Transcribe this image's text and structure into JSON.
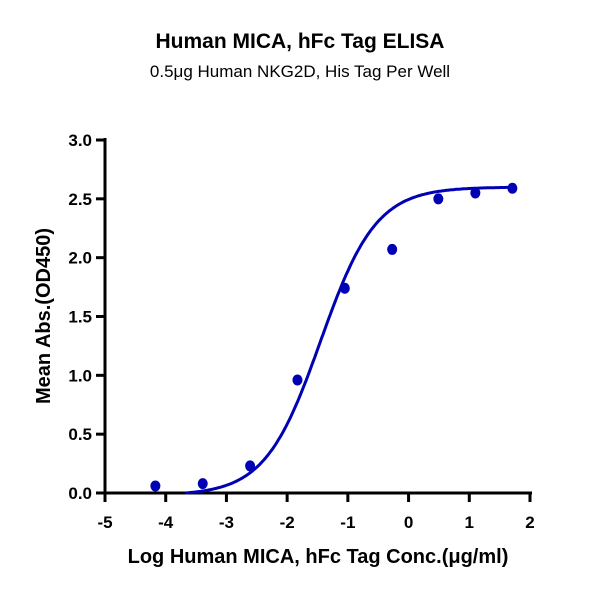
{
  "chart_data": {
    "type": "scatter",
    "title": "Human MICA, hFc Tag ELISA",
    "subtitle": "0.5μg Human NKG2D, His Tag Per Well",
    "xlabel": "Log Human MICA, hFc Tag Conc.(μg/ml)",
    "ylabel": "Mean Abs.(OD450)",
    "xlim": [
      -5,
      2
    ],
    "ylim": [
      0,
      3
    ],
    "xticks": [
      "-5",
      "-4",
      "-3",
      "-2",
      "-1",
      "0",
      "1",
      "2"
    ],
    "yticks": [
      "0.0",
      "0.5",
      "1.0",
      "1.5",
      "2.0",
      "2.5",
      "3.0"
    ],
    "grid": false,
    "color": "#0000b4",
    "points": {
      "x": [
        -4.17,
        -3.39,
        -2.61,
        -1.83,
        -1.05,
        -0.27,
        0.49,
        1.1,
        1.71
      ],
      "y": [
        0.06,
        0.08,
        0.23,
        0.96,
        1.74,
        2.07,
        2.5,
        2.55,
        2.59
      ]
    },
    "fit": {
      "model": "4PL",
      "bottom": -0.02,
      "top": 2.6,
      "logEC50": -1.45,
      "hill": 0.95,
      "x_range": [
        -4.17,
        1.71
      ]
    }
  }
}
